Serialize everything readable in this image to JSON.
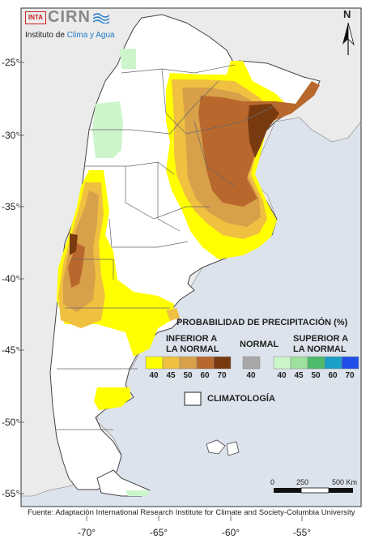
{
  "logo": {
    "badge": "INTA",
    "acronym": "CIRN",
    "subtitle_prefix": "Instituto de",
    "subtitle_highlight": "Clima y Agua",
    "color": "#1f78c8"
  },
  "north_arrow": {
    "label": "N"
  },
  "legend": {
    "title": "PROBABILIDAD DE PRECIPITACIÓN (%)",
    "inferior_label_line1": "INFERIOR A",
    "inferior_label_line2": "LA NORMAL",
    "normal_label": "NORMAL",
    "superior_label_line1": "SUPERIOR A",
    "superior_label_line2": "LA NORMAL",
    "climatologia_label": "CLIMATOLOGÍA",
    "inferior_classes": [
      {
        "value": "40",
        "color": "#ffff00"
      },
      {
        "value": "45",
        "color": "#f0c040"
      },
      {
        "value": "50",
        "color": "#d9a04a"
      },
      {
        "value": "60",
        "color": "#b8682c"
      },
      {
        "value": "70",
        "color": "#7a3a10"
      }
    ],
    "normal_class": {
      "value": "40",
      "color": "#a8a8a8"
    },
    "superior_classes": [
      {
        "value": "40",
        "color": "#ccf5cc"
      },
      {
        "value": "45",
        "color": "#9ee09e"
      },
      {
        "value": "50",
        "color": "#4dbb6a"
      },
      {
        "value": "60",
        "color": "#1aa0c8"
      },
      {
        "value": "70",
        "color": "#1f4fe6"
      }
    ]
  },
  "axes": {
    "lat_labels": [
      "-25°",
      "-30°",
      "-35°",
      "-40°",
      "-45°",
      "-50°",
      "-55°"
    ],
    "lon_labels": [
      "-70°",
      "-65°",
      "-60°",
      "-55°"
    ]
  },
  "scale_bar": {
    "labels": [
      "0",
      "250",
      "500 Km"
    ]
  },
  "source": "Fuente: Adaptación International Research Institute for Climate and Society-Columbia University",
  "colors": {
    "sea": "#dde3ec",
    "neighbor_land": "#ebebeb",
    "argentina": "#ffffff"
  }
}
